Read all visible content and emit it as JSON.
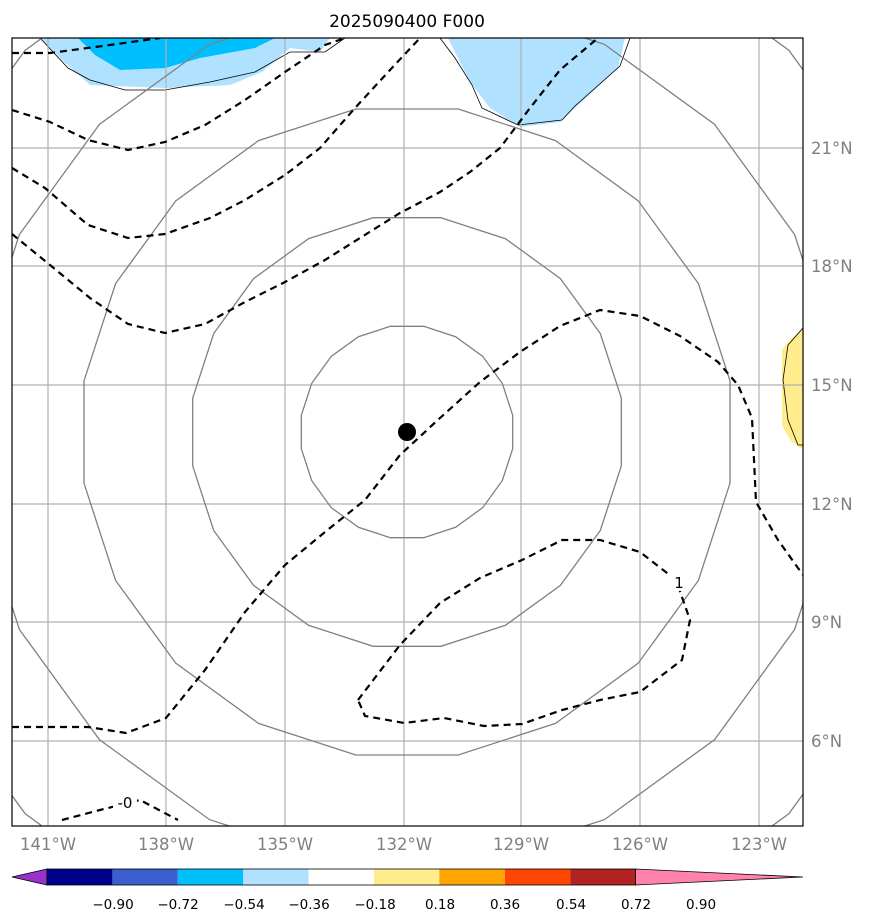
{
  "title": "2025090400 F000",
  "lon_labels": [
    "141°W",
    "138°W",
    "135°W",
    "132°W",
    "129°W",
    "126°W",
    "123°W"
  ],
  "lat_labels": [
    "21°N",
    "18°N",
    "15°N",
    "12°N",
    "9°N",
    "6°N"
  ],
  "colorbar": {
    "ticks": [
      "−0.90",
      "−0.72",
      "−0.54",
      "−0.36",
      "−0.18",
      "0.18",
      "0.36",
      "0.54",
      "0.72",
      "0.90"
    ],
    "colors": [
      "#9932cc",
      "#00008b",
      "#3a5fcd",
      "#00bfff",
      "#b0e2ff",
      "#ffffff",
      "#ffec8b",
      "#ffa500",
      "#ff4500",
      "#b22222",
      "#ff82ab"
    ]
  },
  "contour_labels": [
    "-0",
    "1"
  ],
  "colors": {
    "grid": "#b0b0b0",
    "range_rings": "#808080",
    "contour": "#000000",
    "center_marker": "#000000",
    "shade_light_blue": "#b0e2ff",
    "shade_blue": "#00bfff",
    "shade_yellow": "#ffec8b"
  }
}
